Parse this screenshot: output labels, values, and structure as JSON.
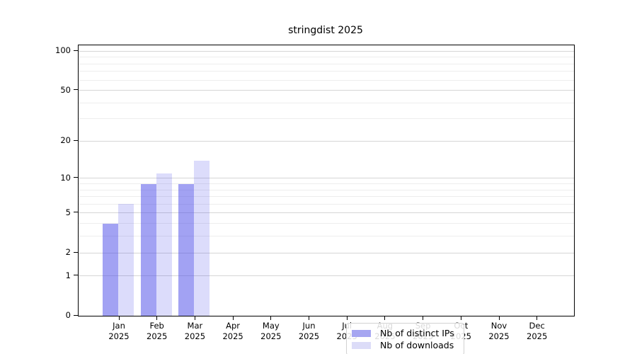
{
  "chart_data": {
    "type": "bar",
    "title": "stringdist 2025",
    "year": "2025",
    "categories": [
      "Jan",
      "Feb",
      "Mar",
      "Apr",
      "May",
      "Jun",
      "Jul",
      "Aug",
      "Sep",
      "Oct",
      "Nov",
      "Dec"
    ],
    "series": [
      {
        "name": "Nb of distinct IPs",
        "color": "rgba(70,70,232,0.50)",
        "solid_color": "#a6a6f1",
        "values": [
          4,
          9,
          9,
          0,
          0,
          0,
          0,
          0,
          0,
          0,
          0,
          0
        ]
      },
      {
        "name": "Nb of downloads",
        "color": "rgba(70,70,232,0.19)",
        "solid_color": "#dcdcf8",
        "values": [
          6,
          11,
          14,
          0,
          0,
          0,
          0,
          0,
          0,
          0,
          0,
          0
        ]
      }
    ],
    "yscale": "log10(value+1)",
    "ylim": [
      0,
      110
    ],
    "y_major_ticks": [
      {
        "label": "100",
        "value": 100
      },
      {
        "label": "50",
        "value": 50
      },
      {
        "label": "20",
        "value": 20
      },
      {
        "label": "10",
        "value": 10
      },
      {
        "label": "5",
        "value": 5
      },
      {
        "label": "2",
        "value": 2
      },
      {
        "label": "1",
        "value": 1
      },
      {
        "label": "0",
        "value": 0
      }
    ],
    "y_minor_gridlines": [
      3,
      4,
      6,
      7,
      8,
      9,
      30,
      40,
      60,
      70,
      80,
      90
    ],
    "grid": "horizontal",
    "legend_position": "bottom-center",
    "colors": {
      "major_grid": "#d6d6d6",
      "minor_grid": "#ededed",
      "axis": "#000000"
    }
  }
}
